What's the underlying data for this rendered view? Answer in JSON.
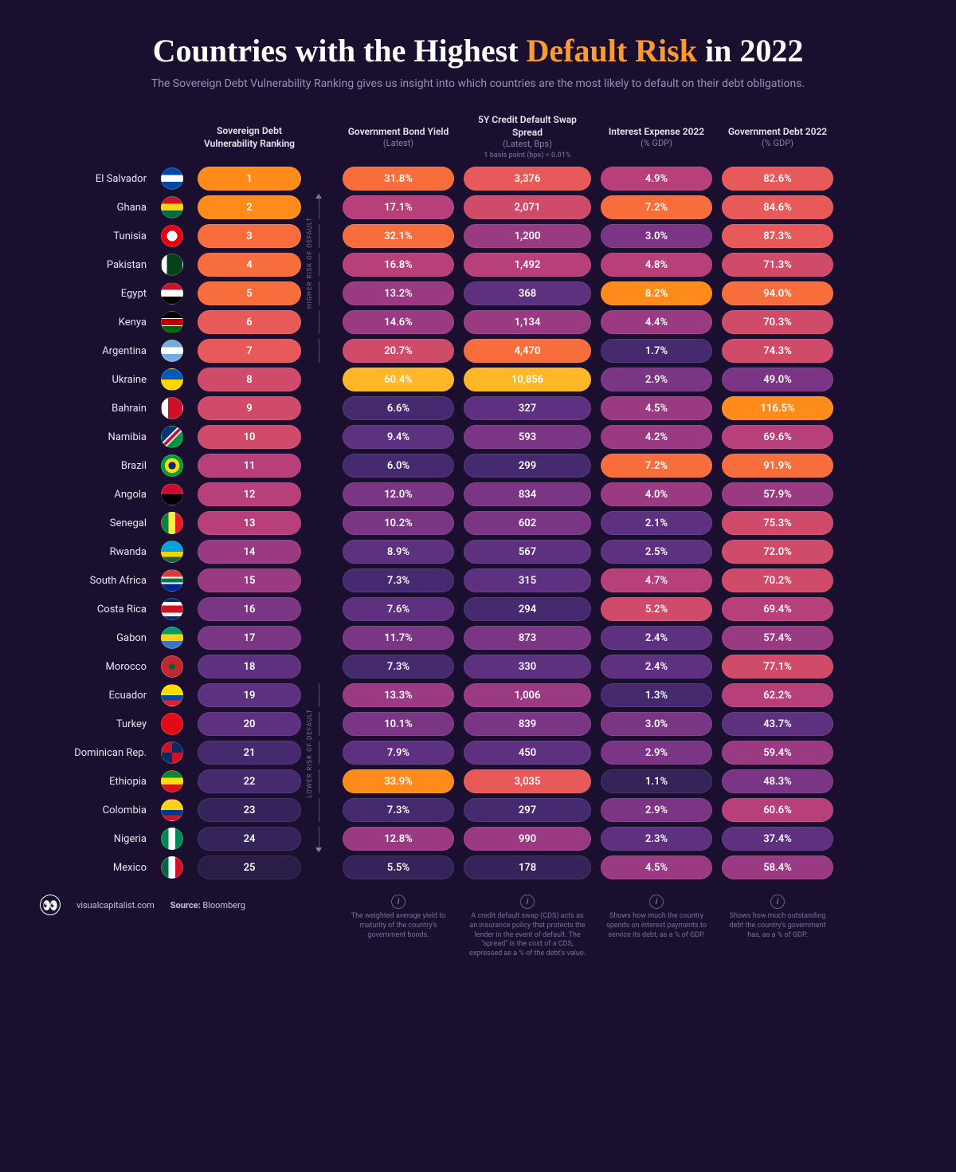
{
  "title_prefix": "Countries with the Highest ",
  "title_highlight": "Default Risk",
  "title_suffix": " in 2022",
  "subtitle": "The Sovereign Debt Vulnerability Ranking gives us insight into which countries are the most likely to default on their debt obligations.",
  "columns": {
    "rank": {
      "label": "Sovereign Debt Vulnerability Ranking",
      "sub": ""
    },
    "bond": {
      "label": "Government Bond Yield",
      "sub": "(Latest)"
    },
    "cds": {
      "label": "5Y Credit Default Swap Spread",
      "sub": "(Latest, Bps)",
      "note": "1 basis point (bps) = 0.01%"
    },
    "interest": {
      "label": "Interest Expense 2022",
      "sub": "(% GDP)"
    },
    "debt": {
      "label": "Government Debt 2022",
      "sub": "(% GDP)"
    }
  },
  "axis": {
    "high": "HIGHER RISK OF DEFAULT",
    "low": "LOWER RISK OF DEFAULT"
  },
  "palette": {
    "s1": "#ffb627",
    "s2": "#ff8c1a",
    "s3": "#f76e3c",
    "s4": "#e85a5a",
    "s5": "#d04a6a",
    "s6": "#b73f7a",
    "s7": "#9a3a82",
    "s8": "#7a3685",
    "s9": "#5e3080",
    "s10": "#462a6f",
    "s11": "#35245a",
    "s12": "#2a1d48"
  },
  "countries": [
    {
      "name": "El Salvador",
      "flag_bg": "linear-gradient(#0047ab 33%,#fff 33% 66%,#0047ab 66%)",
      "rank": "1",
      "rank_c": "s2",
      "bond": "31.8%",
      "bond_c": "s3",
      "cds": "3,376",
      "cds_c": "s4",
      "int": "4.9%",
      "int_c": "s6",
      "debt": "82.6%",
      "debt_c": "s4"
    },
    {
      "name": "Ghana",
      "flag_bg": "linear-gradient(#ce1126 33%,#fcd116 33% 66%,#006b3f 66%)",
      "rank": "2",
      "rank_c": "s2",
      "bond": "17.1%",
      "bond_c": "s6",
      "cds": "2,071",
      "cds_c": "s5",
      "int": "7.2%",
      "int_c": "s3",
      "debt": "84.6%",
      "debt_c": "s4"
    },
    {
      "name": "Tunisia",
      "flag_bg": "radial-gradient(circle,#fff 35%,#e70013 36%)",
      "rank": "3",
      "rank_c": "s3",
      "bond": "32.1%",
      "bond_c": "s3",
      "cds": "1,200",
      "cds_c": "s7",
      "int": "3.0%",
      "int_c": "s8",
      "debt": "87.3%",
      "debt_c": "s4"
    },
    {
      "name": "Pakistan",
      "flag_bg": "linear-gradient(90deg,#fff 25%,#01411c 25%)",
      "rank": "4",
      "rank_c": "s3",
      "bond": "16.8%",
      "bond_c": "s6",
      "cds": "1,492",
      "cds_c": "s6",
      "int": "4.8%",
      "int_c": "s6",
      "debt": "71.3%",
      "debt_c": "s5"
    },
    {
      "name": "Egypt",
      "flag_bg": "linear-gradient(#ce1126 33%,#fff 33% 66%,#000 66%)",
      "rank": "5",
      "rank_c": "s3",
      "bond": "13.2%",
      "bond_c": "s7",
      "cds": "368",
      "cds_c": "s9",
      "int": "8.2%",
      "int_c": "s2",
      "debt": "94.0%",
      "debt_c": "s3"
    },
    {
      "name": "Kenya",
      "flag_bg": "linear-gradient(#000 30%,#fff 30% 35%,#b00 35% 65%,#fff 65% 70%,#060 70%)",
      "rank": "6",
      "rank_c": "s4",
      "bond": "14.6%",
      "bond_c": "s7",
      "cds": "1,134",
      "cds_c": "s7",
      "int": "4.4%",
      "int_c": "s7",
      "debt": "70.3%",
      "debt_c": "s5"
    },
    {
      "name": "Argentina",
      "flag_bg": "linear-gradient(#74acdf 33%,#fff 33% 66%,#74acdf 66%)",
      "rank": "7",
      "rank_c": "s4",
      "bond": "20.7%",
      "bond_c": "s5",
      "cds": "4,470",
      "cds_c": "s3",
      "int": "1.7%",
      "int_c": "s10",
      "debt": "74.3%",
      "debt_c": "s5"
    },
    {
      "name": "Ukraine",
      "flag_bg": "linear-gradient(#005bbb 50%,#ffd500 50%)",
      "rank": "8",
      "rank_c": "s5",
      "bond": "60.4%",
      "bond_c": "s1",
      "cds": "10,856",
      "cds_c": "s1",
      "int": "2.9%",
      "int_c": "s8",
      "debt": "49.0%",
      "debt_c": "s8"
    },
    {
      "name": "Bahrain",
      "flag_bg": "linear-gradient(90deg,#fff 30%,#ce1126 30%)",
      "rank": "9",
      "rank_c": "s5",
      "bond": "6.6%",
      "bond_c": "s10",
      "cds": "327",
      "cds_c": "s9",
      "int": "4.5%",
      "int_c": "s7",
      "debt": "116.5%",
      "debt_c": "s2"
    },
    {
      "name": "Namibia",
      "flag_bg": "linear-gradient(135deg,#003580 40%,#fff 40% 45%,#d21034 45% 55%,#fff 55% 60%,#009543 60%)",
      "rank": "10",
      "rank_c": "s5",
      "bond": "9.4%",
      "bond_c": "s9",
      "cds": "593",
      "cds_c": "s8",
      "int": "4.2%",
      "int_c": "s7",
      "debt": "69.6%",
      "debt_c": "s6"
    },
    {
      "name": "Brazil",
      "flag_bg": "radial-gradient(circle,#002776 25%,#fedf00 26% 50%,#009b3a 51%)",
      "rank": "11",
      "rank_c": "s6",
      "bond": "6.0%",
      "bond_c": "s10",
      "cds": "299",
      "cds_c": "s10",
      "int": "7.2%",
      "int_c": "s3",
      "debt": "91.9%",
      "debt_c": "s3"
    },
    {
      "name": "Angola",
      "flag_bg": "linear-gradient(#cc092f 50%,#000 50%)",
      "rank": "12",
      "rank_c": "s6",
      "bond": "12.0%",
      "bond_c": "s8",
      "cds": "834",
      "cds_c": "s8",
      "int": "4.0%",
      "int_c": "s7",
      "debt": "57.9%",
      "debt_c": "s7"
    },
    {
      "name": "Senegal",
      "flag_bg": "linear-gradient(90deg,#00853f 33%,#fdef42 33% 66%,#e31b23 66%)",
      "rank": "13",
      "rank_c": "s6",
      "bond": "10.2%",
      "bond_c": "s8",
      "cds": "602",
      "cds_c": "s8",
      "int": "2.1%",
      "int_c": "s9",
      "debt": "75.3%",
      "debt_c": "s5"
    },
    {
      "name": "Rwanda",
      "flag_bg": "linear-gradient(#00a1de 50%,#fad201 50% 75%,#20603d 75%)",
      "rank": "14",
      "rank_c": "s7",
      "bond": "8.9%",
      "bond_c": "s9",
      "cds": "567",
      "cds_c": "s9",
      "int": "2.5%",
      "int_c": "s9",
      "debt": "72.0%",
      "debt_c": "s5"
    },
    {
      "name": "South Africa",
      "flag_bg": "linear-gradient(#de3831 33%,#fff 33% 40%,#007a4d 40% 60%,#fff 60% 67%,#002395 67%)",
      "rank": "15",
      "rank_c": "s7",
      "bond": "7.3%",
      "bond_c": "s10",
      "cds": "315",
      "cds_c": "s9",
      "int": "4.7%",
      "int_c": "s6",
      "debt": "70.2%",
      "debt_c": "s5"
    },
    {
      "name": "Costa Rica",
      "flag_bg": "linear-gradient(#002b7f 16%,#fff 16% 32%,#ce1126 32% 68%,#fff 68% 84%,#002b7f 84%)",
      "rank": "16",
      "rank_c": "s8",
      "bond": "7.6%",
      "bond_c": "s9",
      "cds": "294",
      "cds_c": "s10",
      "int": "5.2%",
      "int_c": "s5",
      "debt": "69.4%",
      "debt_c": "s6"
    },
    {
      "name": "Gabon",
      "flag_bg": "linear-gradient(#009e60 33%,#fcd116 33% 66%,#3a75c4 66%)",
      "rank": "17",
      "rank_c": "s8",
      "bond": "11.7%",
      "bond_c": "s8",
      "cds": "873",
      "cds_c": "s8",
      "int": "2.4%",
      "int_c": "s9",
      "debt": "57.4%",
      "debt_c": "s7"
    },
    {
      "name": "Morocco",
      "flag_bg": "radial-gradient(circle,#006233 20%,#c1272d 21%)",
      "rank": "18",
      "rank_c": "s9",
      "bond": "7.3%",
      "bond_c": "s10",
      "cds": "330",
      "cds_c": "s9",
      "int": "2.4%",
      "int_c": "s9",
      "debt": "77.1%",
      "debt_c": "s5"
    },
    {
      "name": "Ecuador",
      "flag_bg": "linear-gradient(#ffdd00 50%,#034ea2 50% 75%,#ed1c24 75%)",
      "rank": "19",
      "rank_c": "s9",
      "bond": "13.3%",
      "bond_c": "s7",
      "cds": "1,006",
      "cds_c": "s7",
      "int": "1.3%",
      "int_c": "s10",
      "debt": "62.2%",
      "debt_c": "s6"
    },
    {
      "name": "Turkey",
      "flag_bg": "#e30a17",
      "rank": "20",
      "rank_c": "s9",
      "bond": "10.1%",
      "bond_c": "s8",
      "cds": "839",
      "cds_c": "s8",
      "int": "3.0%",
      "int_c": "s8",
      "debt": "43.7%",
      "debt_c": "s9"
    },
    {
      "name": "Dominican Rep.",
      "flag_bg": "conic-gradient(#002d62 0 25%,#ce1126 25% 50%,#002d62 50% 75%,#ce1126 75%)",
      "rank": "21",
      "rank_c": "s10",
      "bond": "7.9%",
      "bond_c": "s9",
      "cds": "450",
      "cds_c": "s9",
      "int": "2.9%",
      "int_c": "s8",
      "debt": "59.4%",
      "debt_c": "s7"
    },
    {
      "name": "Ethiopia",
      "flag_bg": "linear-gradient(#078930 33%,#fcdd09 33% 66%,#da121a 66%)",
      "rank": "22",
      "rank_c": "s10",
      "bond": "33.9%",
      "bond_c": "s2",
      "cds": "3,035",
      "cds_c": "s4",
      "int": "1.1%",
      "int_c": "s11",
      "debt": "48.3%",
      "debt_c": "s8"
    },
    {
      "name": "Colombia",
      "flag_bg": "linear-gradient(#fcd116 50%,#003893 50% 75%,#ce1126 75%)",
      "rank": "23",
      "rank_c": "s11",
      "bond": "7.3%",
      "bond_c": "s10",
      "cds": "297",
      "cds_c": "s10",
      "int": "2.9%",
      "int_c": "s8",
      "debt": "60.6%",
      "debt_c": "s6"
    },
    {
      "name": "Nigeria",
      "flag_bg": "linear-gradient(90deg,#008751 33%,#fff 33% 66%,#008751 66%)",
      "rank": "24",
      "rank_c": "s11",
      "bond": "12.8%",
      "bond_c": "s7",
      "cds": "990",
      "cds_c": "s7",
      "int": "2.3%",
      "int_c": "s9",
      "debt": "37.4%",
      "debt_c": "s9"
    },
    {
      "name": "Mexico",
      "flag_bg": "linear-gradient(90deg,#006847 33%,#fff 33% 66%,#ce1126 66%)",
      "rank": "25",
      "rank_c": "s12",
      "bond": "5.5%",
      "bond_c": "s11",
      "cds": "178",
      "cds_c": "s11",
      "int": "4.5%",
      "int_c": "s7",
      "debt": "58.4%",
      "debt_c": "s7"
    }
  ],
  "footer": {
    "site": "visualcapitalist.com",
    "source_label": "Source:",
    "source": "Bloomberg",
    "info_bond": "The weighted average yield to maturity of the country's government bonds.",
    "info_cds": "A credit default swap (CDS) acts as an insurance policy that protects the lender in the event of default. The \"spread\" is the cost of a CDS, expressed as a % of the debt's value.",
    "info_interest": "Shows how much the country spends on interest payments to service its debt, as a % of GDP.",
    "info_debt": "Shows how much outstanding debt the country's government has, as a % of GDP."
  }
}
